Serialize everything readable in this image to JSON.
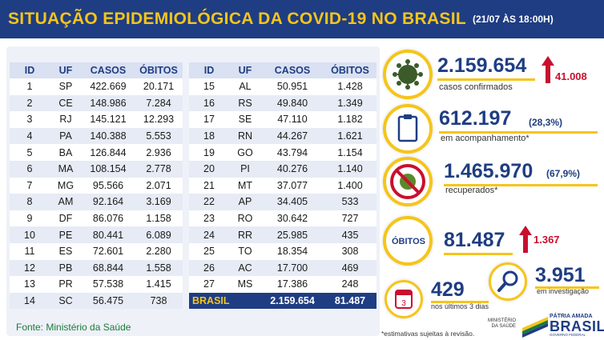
{
  "header": {
    "title": "SITUAÇÃO EPIDEMIOLÓGICA DA COVID-19 NO BRASIL",
    "date": "(21/07 ÀS 18:00H)"
  },
  "table": {
    "columns": [
      "ID",
      "UF",
      "CASOS",
      "ÓBITOS"
    ],
    "left_rows": [
      [
        "1",
        "SP",
        "422.669",
        "20.171"
      ],
      [
        "2",
        "CE",
        "148.986",
        "7.284"
      ],
      [
        "3",
        "RJ",
        "145.121",
        "12.293"
      ],
      [
        "4",
        "PA",
        "140.388",
        "5.553"
      ],
      [
        "5",
        "BA",
        "126.844",
        "2.936"
      ],
      [
        "6",
        "MA",
        "108.154",
        "2.778"
      ],
      [
        "7",
        "MG",
        "95.566",
        "2.071"
      ],
      [
        "8",
        "AM",
        "92.164",
        "3.169"
      ],
      [
        "9",
        "DF",
        "86.076",
        "1.158"
      ],
      [
        "10",
        "PE",
        "80.441",
        "6.089"
      ],
      [
        "11",
        "ES",
        "72.601",
        "2.280"
      ],
      [
        "12",
        "PB",
        "68.844",
        "1.558"
      ],
      [
        "13",
        "PR",
        "57.538",
        "1.415"
      ],
      [
        "14",
        "SC",
        "56.475",
        "738"
      ]
    ],
    "right_rows": [
      [
        "15",
        "AL",
        "50.951",
        "1.428"
      ],
      [
        "16",
        "RS",
        "49.840",
        "1.349"
      ],
      [
        "17",
        "SE",
        "47.110",
        "1.182"
      ],
      [
        "18",
        "RN",
        "44.267",
        "1.621"
      ],
      [
        "19",
        "GO",
        "43.794",
        "1.154"
      ],
      [
        "20",
        "PI",
        "40.276",
        "1.140"
      ],
      [
        "21",
        "MT",
        "37.077",
        "1.400"
      ],
      [
        "22",
        "AP",
        "34.405",
        "533"
      ],
      [
        "23",
        "RO",
        "30.642",
        "727"
      ],
      [
        "24",
        "RR",
        "25.985",
        "435"
      ],
      [
        "25",
        "TO",
        "18.354",
        "308"
      ],
      [
        "26",
        "AC",
        "17.700",
        "469"
      ],
      [
        "27",
        "MS",
        "17.386",
        "248"
      ]
    ],
    "total": {
      "label": "BRASIL",
      "cases": "2.159.654",
      "deaths": "81.487"
    }
  },
  "source": "Fonte: Ministério da Saúde",
  "stats": {
    "confirmed": {
      "value": "2.159.654",
      "caption": "casos confirmados",
      "delta": "41.008",
      "icon": "virus-icon"
    },
    "monitoring": {
      "value": "612.197",
      "pct": "(28,3%)",
      "caption": "em acompanhamento*",
      "icon": "clipboard-icon"
    },
    "recovered": {
      "value": "1.465.970",
      "pct": "(67,9%)",
      "caption": "recuperados*",
      "icon": "no-virus-icon"
    },
    "deaths": {
      "label": "ÓBITOS",
      "value": "81.487",
      "delta": "1.367"
    },
    "investigation": {
      "value": "3.951",
      "caption": "em investigação",
      "icon": "magnifier-icon"
    },
    "last3days": {
      "value": "429",
      "caption": "nos últimos 3 dias",
      "icon": "calendar-icon",
      "calendar_number": "3"
    }
  },
  "footnote": "*estimativas sujeitas à revisão.",
  "branding": {
    "ministerio": "MINISTÉRIO DA SAÚDE",
    "patria": "PÁTRIA AMADA",
    "brasil": "BRASIL",
    "governo": "GOVERNO FEDERAL"
  },
  "colors": {
    "navy": "#1f3d82",
    "yellow": "#f5c51a",
    "red": "#c8102e",
    "green": "#1b7a3a"
  }
}
